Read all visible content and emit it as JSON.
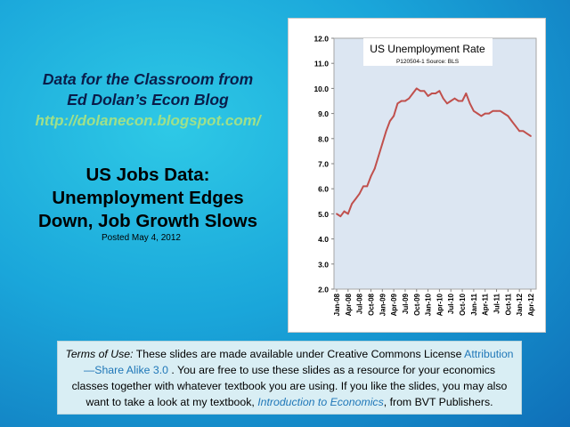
{
  "slide": {
    "header_line1": "Data for the Classroom from",
    "header_line2": "Ed Dolan’s Econ Blog",
    "blog_url": "http://dolanecon.blogspot.com/",
    "headline_line1": "US Jobs Data:",
    "headline_line2": "Unemployment Edges",
    "headline_line3": "Down, Job Growth Slows",
    "posted": "Posted  May 4, 2012"
  },
  "terms": {
    "label": "Terms of Use:",
    "text1": " These slides are made available under Creative Commons License ",
    "license": "Attribution—Share Alike 3.0",
    "text2": " . You are free to use these slides as a resource for your economics classes together with whatever textbook you are using. If you like the slides, you may also want to take a look at my textbook, ",
    "book": "Introduction to Economics",
    "text3": ", from BVT Publishers."
  },
  "colors": {
    "line": "#c0504d",
    "plot_bg": "#dce6f2",
    "link": "#1f77b8"
  },
  "chart_data": {
    "type": "line",
    "title": "US Unemployment Rate",
    "subtitle": "P120504-1 Source: BLS",
    "xlabel": "",
    "ylabel": "",
    "ylim": [
      2.0,
      12.0
    ],
    "yticks": [
      "2.0",
      "3.0",
      "4.0",
      "5.0",
      "6.0",
      "7.0",
      "8.0",
      "9.0",
      "10.0",
      "11.0",
      "12.0"
    ],
    "xtick_labels": [
      "Jan-08",
      "Apr-08",
      "Jul-08",
      "Oct-08",
      "Jan-09",
      "Apr-09",
      "Jul-09",
      "Oct-09",
      "Jan-10",
      "Apr-10",
      "Jul-10",
      "Oct-10",
      "Jan-11",
      "Apr-11",
      "Jul-11",
      "Oct-11",
      "Jan-12",
      "Apr-12"
    ],
    "grid": false,
    "legend": "none",
    "series": [
      {
        "values": [
          5.0,
          4.9,
          5.1,
          5.0,
          5.4,
          5.6,
          5.8,
          6.1,
          6.1,
          6.5,
          6.8,
          7.3,
          7.8,
          8.3,
          8.7,
          8.9,
          9.4,
          9.5,
          9.5,
          9.6,
          9.8,
          10.0,
          9.9,
          9.9,
          9.7,
          9.8,
          9.8,
          9.9,
          9.6,
          9.4,
          9.5,
          9.6,
          9.5,
          9.5,
          9.8,
          9.4,
          9.1,
          9.0,
          8.9,
          9.0,
          9.0,
          9.1,
          9.1,
          9.1,
          9.0,
          8.9,
          8.7,
          8.5,
          8.3,
          8.3,
          8.2,
          8.1
        ]
      }
    ]
  }
}
